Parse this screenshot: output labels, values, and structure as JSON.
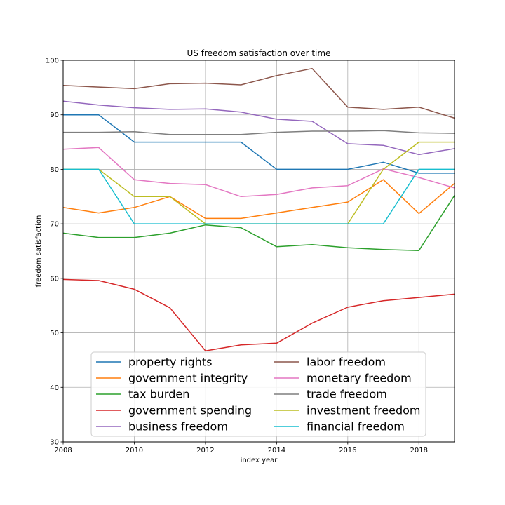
{
  "chart_data": {
    "type": "line",
    "title": "US freedom satisfaction over time",
    "xlabel": "index year",
    "ylabel": "freedom satisfaction",
    "xlim": [
      2008,
      2019
    ],
    "ylim": [
      30,
      100
    ],
    "xticks": [
      2008,
      2010,
      2012,
      2014,
      2016,
      2018
    ],
    "yticks": [
      30,
      40,
      50,
      60,
      70,
      80,
      90,
      100
    ],
    "grid": true,
    "legend_position": "lower center",
    "x": [
      2008,
      2009,
      2010,
      2011,
      2012,
      2013,
      2014,
      2015,
      2016,
      2017,
      2018,
      2019
    ],
    "series": [
      {
        "name": "property rights",
        "color": "#1f77b4",
        "values": [
          90,
          90,
          85,
          85,
          85,
          85,
          80,
          80,
          80,
          81.3,
          79.3,
          79.3
        ]
      },
      {
        "name": "government integrity",
        "color": "#ff7f0e",
        "values": [
          73,
          72,
          73,
          75,
          71,
          71,
          72,
          73,
          74,
          78.1,
          71.9,
          77.4
        ]
      },
      {
        "name": "tax burden",
        "color": "#2ca02c",
        "values": [
          68.3,
          67.5,
          67.5,
          68.3,
          69.8,
          69.3,
          65.8,
          66.2,
          65.6,
          65.3,
          65.1,
          75.2
        ]
      },
      {
        "name": "government spending",
        "color": "#d62728",
        "values": [
          59.8,
          59.6,
          58,
          54.6,
          46.7,
          47.8,
          48.1,
          51.8,
          54.7,
          55.9,
          56.5,
          57.1
        ]
      },
      {
        "name": "business freedom",
        "color": "#9467bd",
        "values": [
          92.5,
          91.8,
          91.3,
          91,
          91.1,
          90.5,
          89.2,
          88.8,
          84.7,
          84.4,
          82.7,
          83.8
        ]
      },
      {
        "name": "labor freedom",
        "color": "#8c564b",
        "values": [
          95.4,
          95.1,
          94.8,
          95.7,
          95.8,
          95.5,
          97.2,
          98.5,
          91.4,
          91,
          91.4,
          89.4
        ]
      },
      {
        "name": "monetary freedom",
        "color": "#e377c2",
        "values": [
          83.7,
          84,
          78.1,
          77.4,
          77.2,
          75,
          75.4,
          76.6,
          77,
          80.1,
          78.5,
          76.6
        ]
      },
      {
        "name": "trade freedom",
        "color": "#7f7f7f",
        "values": [
          86.8,
          86.8,
          86.9,
          86.4,
          86.4,
          86.4,
          86.8,
          87,
          87,
          87.1,
          86.7,
          86.6
        ]
      },
      {
        "name": "investment freedom",
        "color": "#bcbd22",
        "values": [
          80,
          80,
          75,
          75,
          70,
          70,
          70,
          70,
          70,
          80,
          85,
          85
        ]
      },
      {
        "name": "financial freedom",
        "color": "#17becf",
        "values": [
          80,
          80,
          70,
          70,
          70,
          70,
          70,
          70,
          70,
          70,
          80,
          80
        ]
      }
    ]
  }
}
